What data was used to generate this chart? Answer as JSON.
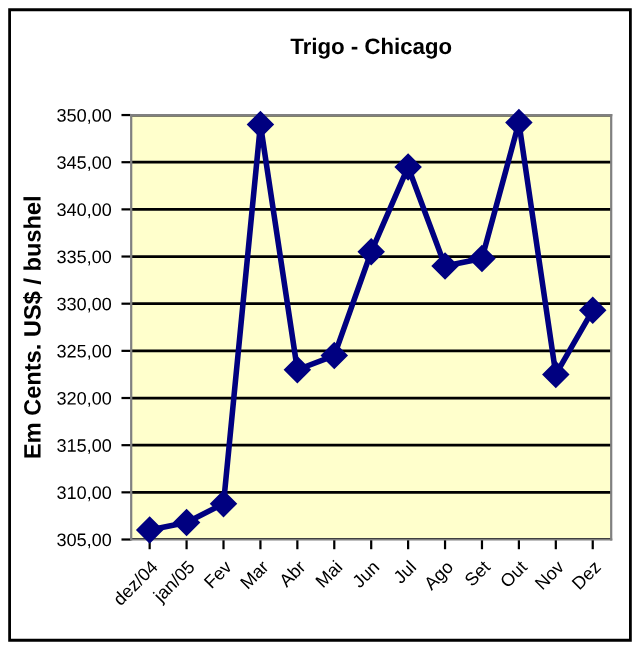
{
  "chart_data": {
    "type": "line",
    "title": "Trigo - Chicago",
    "ylabel": "Em Cents. US$ / bushel",
    "categories": [
      "dez/04",
      "jan/05",
      "Fev",
      "Mar",
      "Abr",
      "Mai",
      "Jun",
      "Jul",
      "Ago",
      "Set",
      "Out",
      "Nov",
      "Dez"
    ],
    "series": [
      {
        "color": "#000080",
        "values": [
          306.0,
          306.8,
          308.8,
          349.0,
          323.0,
          324.5,
          335.5,
          344.5,
          334.0,
          334.8,
          349.2,
          322.5,
          329.3
        ]
      }
    ],
    "ylim": [
      305,
      350
    ],
    "yticks": [
      {
        "value": 305,
        "label": "305,00"
      },
      {
        "value": 310,
        "label": "310,00"
      },
      {
        "value": 315,
        "label": "315,00"
      },
      {
        "value": 320,
        "label": "320,00"
      },
      {
        "value": 325,
        "label": "325,00"
      },
      {
        "value": 330,
        "label": "330,00"
      },
      {
        "value": 335,
        "label": "335,00"
      },
      {
        "value": 340,
        "label": "340,00"
      },
      {
        "value": 345,
        "label": "345,00"
      },
      {
        "value": 350,
        "label": "350,00"
      }
    ],
    "grid": "y",
    "marker": "diamond",
    "line_style": "solid"
  }
}
